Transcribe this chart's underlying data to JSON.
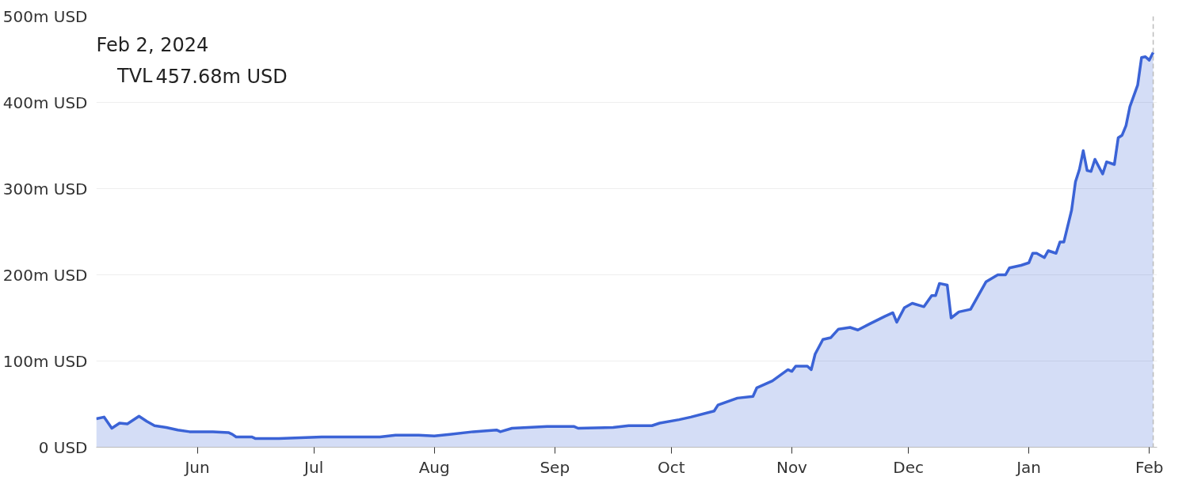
{
  "chart_data": {
    "type": "area",
    "annotations": [
      "Feb 2, 2024",
      "457.68m USD"
    ],
    "x": [
      "2023-05-06",
      "2023-05-08",
      "2023-05-10",
      "2023-05-12",
      "2023-05-14",
      "2023-05-17",
      "2023-05-19",
      "2023-05-21",
      "2023-05-24",
      "2023-05-27",
      "2023-05-30",
      "2023-06-05",
      "2023-06-09",
      "2023-06-10",
      "2023-06-11",
      "2023-06-15",
      "2023-06-16",
      "2023-06-22",
      "2023-07-03",
      "2023-07-18",
      "2023-07-22",
      "2023-07-28",
      "2023-08-01",
      "2023-08-05",
      "2023-08-11",
      "2023-08-17",
      "2023-08-18",
      "2023-08-21",
      "2023-08-30",
      "2023-09-06",
      "2023-09-07",
      "2023-09-16",
      "2023-09-20",
      "2023-09-26",
      "2023-09-28",
      "2023-10-03",
      "2023-10-06",
      "2023-10-12",
      "2023-10-13",
      "2023-10-18",
      "2023-10-22",
      "2023-10-23",
      "2023-10-27",
      "2023-10-31",
      "2023-11-01",
      "2023-11-02",
      "2023-11-05",
      "2023-11-06",
      "2023-11-07",
      "2023-11-09",
      "2023-11-11",
      "2023-11-13",
      "2023-11-16",
      "2023-11-18",
      "2023-11-21",
      "2023-11-25",
      "2023-11-27",
      "2023-11-28",
      "2023-11-30",
      "2023-12-02",
      "2023-12-05",
      "2023-12-07",
      "2023-12-08",
      "2023-12-09",
      "2023-12-11",
      "2023-12-12",
      "2023-12-14",
      "2023-12-17",
      "2023-12-19",
      "2023-12-21",
      "2023-12-24",
      "2023-12-26",
      "2023-12-27",
      "2023-12-30",
      "2024-01-01",
      "2024-01-02",
      "2024-01-03",
      "2024-01-05",
      "2024-01-06",
      "2024-01-08",
      "2024-01-09",
      "2024-01-10",
      "2024-01-12",
      "2024-01-13",
      "2024-01-14",
      "2024-01-15",
      "2024-01-16",
      "2024-01-17",
      "2024-01-18",
      "2024-01-20",
      "2024-01-21",
      "2024-01-23",
      "2024-01-24",
      "2024-01-25",
      "2024-01-26",
      "2024-01-27",
      "2024-01-29",
      "2024-01-30",
      "2024-01-31",
      "2024-02-01",
      "2024-02-02"
    ],
    "series": [
      {
        "name": "TVL",
        "color": "#3b63d6",
        "values": [
          33,
          35,
          22,
          28,
          27,
          36,
          30,
          25,
          23,
          20,
          18,
          18,
          17,
          15,
          12,
          12,
          10,
          10,
          12,
          12,
          14,
          14,
          13,
          15,
          18,
          20,
          18,
          22,
          24,
          24,
          22,
          23,
          25,
          25,
          28,
          32,
          35,
          42,
          49,
          57,
          59,
          69,
          77,
          90,
          88,
          94,
          94,
          90,
          108,
          125,
          127,
          137,
          139,
          136,
          143,
          152,
          156,
          145,
          162,
          167,
          163,
          176,
          176,
          190,
          188,
          150,
          157,
          160,
          176,
          192,
          200,
          200,
          208,
          211,
          214,
          225,
          225,
          220,
          228,
          225,
          238,
          238,
          275,
          308,
          322,
          344,
          321,
          320,
          334,
          317,
          331,
          328,
          359,
          362,
          373,
          395,
          420,
          452,
          453,
          449,
          458
        ]
      }
    ],
    "ylim": [
      0,
      500
    ],
    "yticks": [
      {
        "value": 0,
        "label": "0 USD"
      },
      {
        "value": 100,
        "label": "100m USD"
      },
      {
        "value": 200,
        "label": "200m USD"
      },
      {
        "value": 300,
        "label": "300m USD"
      },
      {
        "value": 400,
        "label": "400m USD"
      },
      {
        "value": 500,
        "label": "500m USD"
      }
    ],
    "xlim": [
      "2023-05-06",
      "2024-02-03"
    ],
    "xticks": [
      {
        "value": "2023-06-01",
        "label": "Jun"
      },
      {
        "value": "2023-07-01",
        "label": "Jul"
      },
      {
        "value": "2023-08-01",
        "label": "Aug"
      },
      {
        "value": "2023-09-01",
        "label": "Sep"
      },
      {
        "value": "2023-10-01",
        "label": "Oct"
      },
      {
        "value": "2023-11-01",
        "label": "Nov"
      },
      {
        "value": "2023-12-01",
        "label": "Dec"
      },
      {
        "value": "2024-01-01",
        "label": "Jan"
      },
      {
        "value": "2024-02-01",
        "label": "Feb"
      }
    ],
    "ref_lines": [
      {
        "axis": "x",
        "value": "2024-02-02",
        "color": "#bbbbbb",
        "line_style": "dashed"
      }
    ],
    "grid": "y",
    "legend": "top left"
  }
}
